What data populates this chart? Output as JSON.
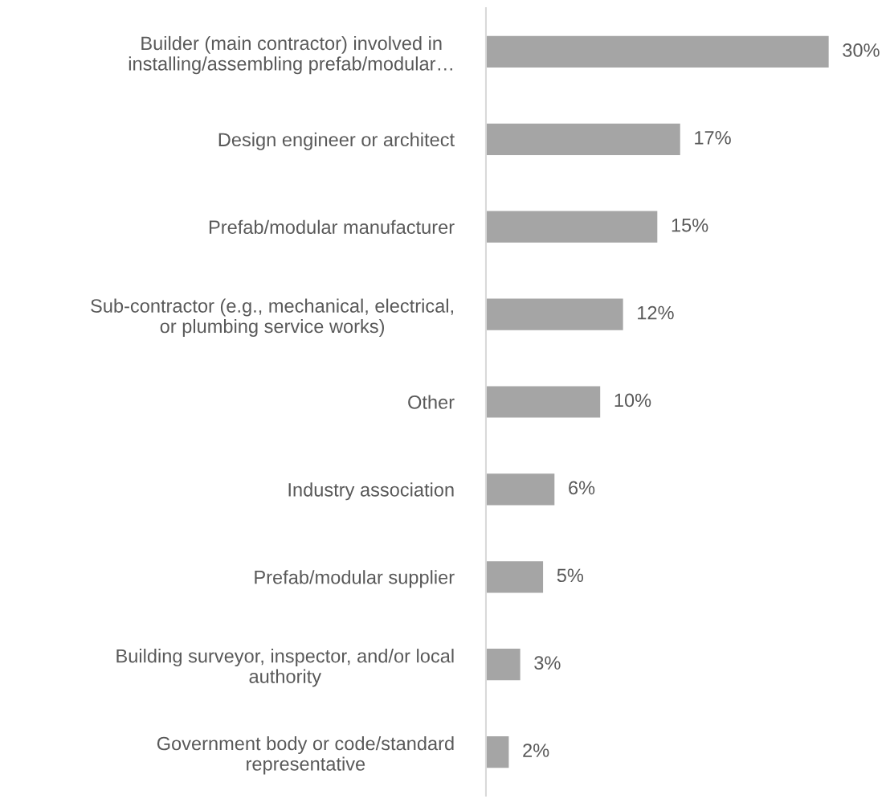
{
  "chart_data": {
    "type": "bar",
    "orientation": "horizontal",
    "categories": [
      "Builder (main contractor) involved in\ninstalling/assembling prefab/modular…",
      "Design engineer or architect",
      "Prefab/modular manufacturer",
      "Sub-contractor (e.g., mechanical, electrical,\nor plumbing service works)",
      "Other",
      "Industry association",
      "Prefab/modular supplier",
      "Building surveyor, inspector, and/or local\nauthority",
      "Government body or code/standard\nrepresentative"
    ],
    "values": [
      30,
      17,
      15,
      12,
      10,
      6,
      5,
      3,
      2
    ],
    "value_labels": [
      "30%",
      "17%",
      "15%",
      "12%",
      "10%",
      "6%",
      "5%",
      "3%",
      "2%"
    ],
    "color": "#a5a5a5",
    "grid": false,
    "legend": false
  }
}
